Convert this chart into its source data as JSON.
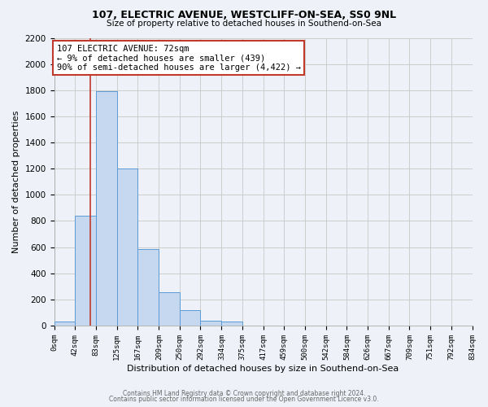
{
  "title": "107, ELECTRIC AVENUE, WESTCLIFF-ON-SEA, SS0 9NL",
  "subtitle": "Size of property relative to detached houses in Southend-on-Sea",
  "xlabel": "Distribution of detached houses by size in Southend-on-Sea",
  "ylabel": "Number of detached properties",
  "bin_edges": [
    0,
    42,
    83,
    125,
    167,
    209,
    250,
    292,
    334,
    375,
    417,
    459,
    500,
    542,
    584,
    626,
    667,
    709,
    751,
    792,
    834
  ],
  "bin_labels": [
    "0sqm",
    "42sqm",
    "83sqm",
    "125sqm",
    "167sqm",
    "209sqm",
    "250sqm",
    "292sqm",
    "334sqm",
    "375sqm",
    "417sqm",
    "459sqm",
    "500sqm",
    "542sqm",
    "584sqm",
    "626sqm",
    "667sqm",
    "709sqm",
    "751sqm",
    "792sqm",
    "834sqm"
  ],
  "counts": [
    30,
    840,
    1790,
    1200,
    585,
    255,
    115,
    40,
    30,
    0,
    0,
    0,
    0,
    0,
    0,
    0,
    0,
    0,
    0,
    0
  ],
  "bar_facecolor": "#c5d8f0",
  "bar_edgecolor": "#5b9bd5",
  "property_line_x": 72,
  "property_line_color": "#c0392b",
  "annotation_text": "107 ELECTRIC AVENUE: 72sqm\n← 9% of detached houses are smaller (439)\n90% of semi-detached houses are larger (4,422) →",
  "annotation_box_edgecolor": "#c0392b",
  "annotation_box_facecolor": "#ffffff",
  "ylim": [
    0,
    2200
  ],
  "yticks": [
    0,
    200,
    400,
    600,
    800,
    1000,
    1200,
    1400,
    1600,
    1800,
    2000,
    2200
  ],
  "grid_color": "#c8c8c8",
  "bg_color": "#eef2f8",
  "footer_line1": "Contains HM Land Registry data © Crown copyright and database right 2024.",
  "footer_line2": "Contains public sector information licensed under the Open Government Licence v3.0."
}
